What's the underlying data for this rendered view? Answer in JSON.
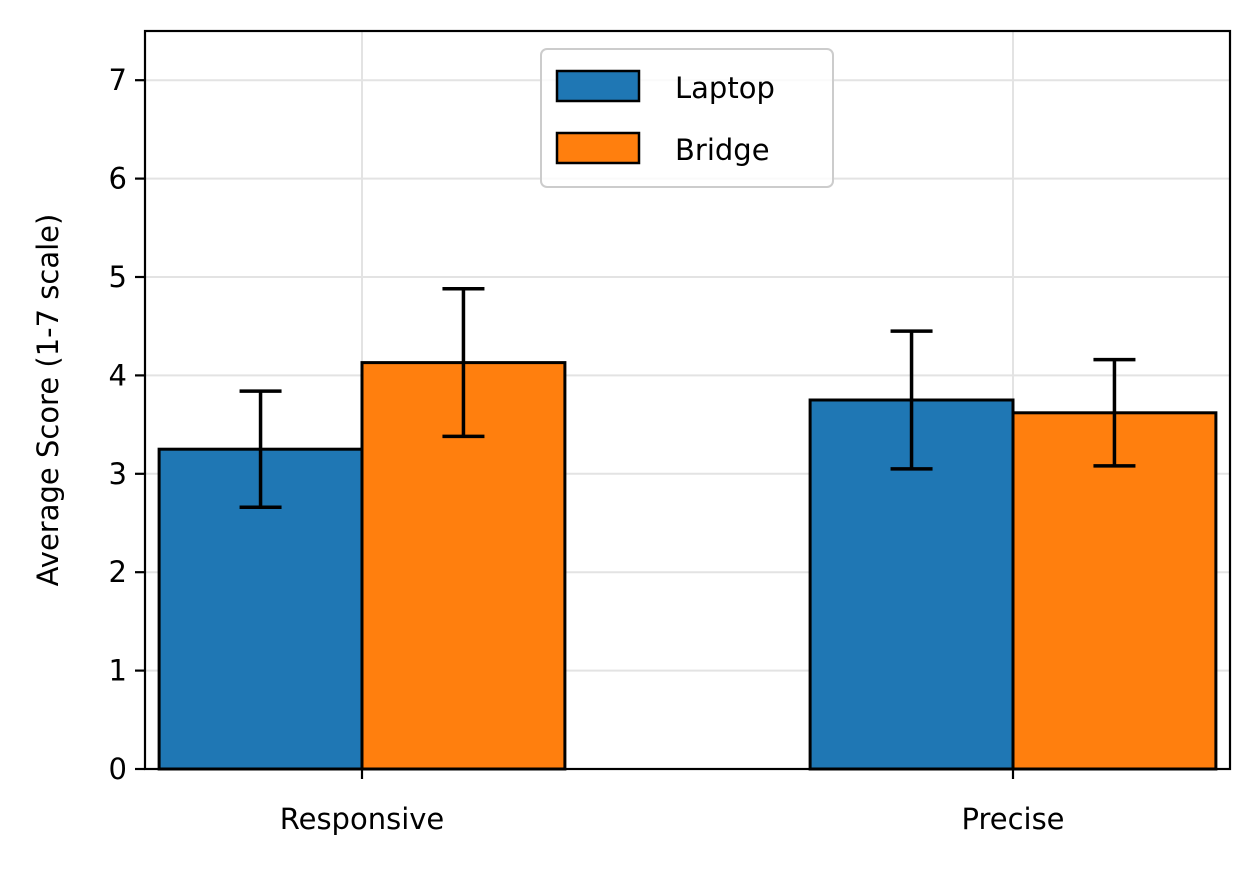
{
  "chart_data": {
    "type": "bar",
    "title": "",
    "xlabel": "",
    "ylabel": "Average Score (1-7 scale)",
    "categories": [
      "Responsive",
      "Precise"
    ],
    "ylim": [
      0,
      7.5
    ],
    "yticks": [
      0,
      1,
      2,
      3,
      4,
      5,
      6,
      7
    ],
    "grid": true,
    "legend_position": "top-center",
    "series": [
      {
        "name": "Laptop",
        "color": "#1f77b4",
        "values": [
          3.25,
          3.75
        ],
        "errors": [
          0.59,
          0.7
        ]
      },
      {
        "name": "Bridge",
        "color": "#ff7f0e",
        "values": [
          4.13,
          3.62
        ],
        "errors": [
          0.75,
          0.54
        ]
      }
    ]
  }
}
